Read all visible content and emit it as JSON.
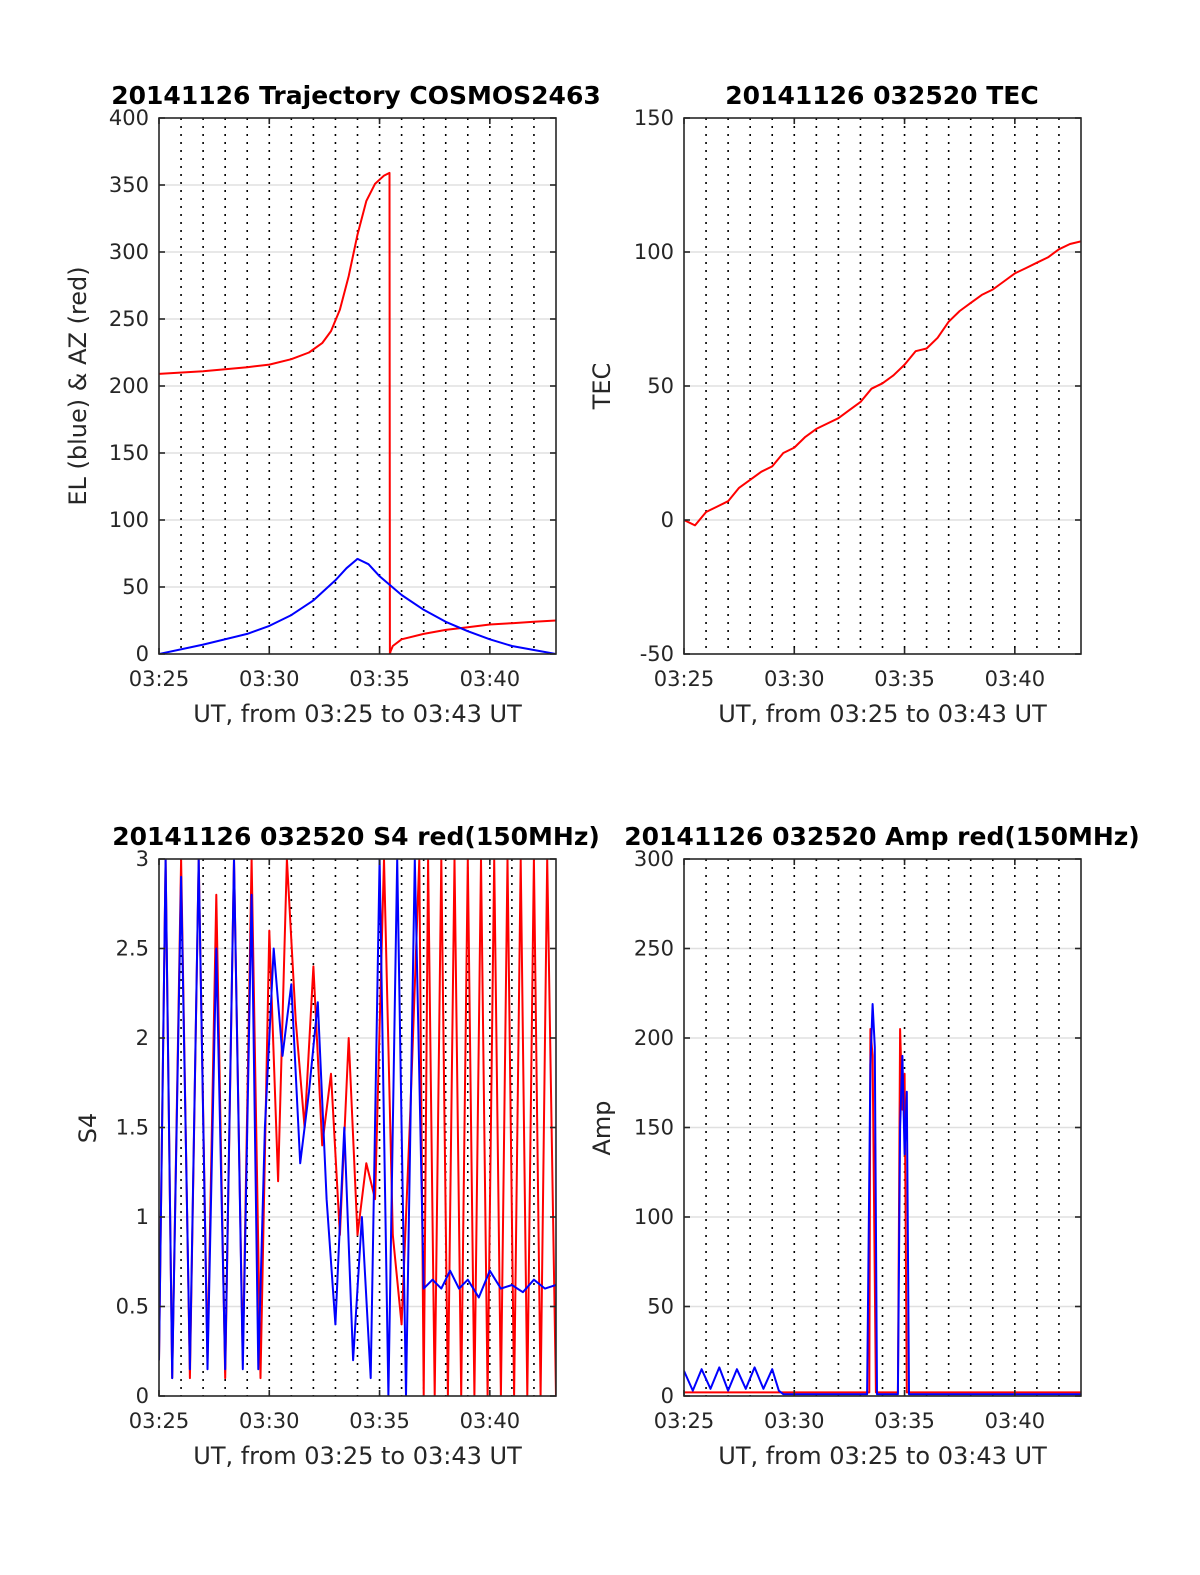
{
  "chart_data": [
    {
      "type": "line",
      "title": "20141126 Trajectory COSMOS2463",
      "xlabel": "UT, from 03:25 to 03:43 UT",
      "ylabel": "EL (blue) & AZ (red)",
      "xlim": [
        0,
        18
      ],
      "ylim": [
        0,
        400
      ],
      "xticks": [
        0,
        5,
        10,
        15
      ],
      "xtick_labels": [
        "03:25",
        "03:30",
        "03:35",
        "03:40"
      ],
      "yticks": [
        0,
        50,
        100,
        150,
        200,
        250,
        300,
        350,
        400
      ],
      "ytick_labels": [
        "0",
        "50",
        "100",
        "150",
        "200",
        "250",
        "300",
        "350",
        "400"
      ],
      "grid": {
        "horizontal": true,
        "vertical_dotted_every_minute": true
      },
      "series": [
        {
          "color": "#ff0000",
          "x": [
            0,
            2,
            4,
            5,
            6,
            6.8,
            7.4,
            7.8,
            8.2,
            8.6,
            9,
            9.4,
            9.8,
            10.2,
            10.45,
            10.47,
            10.5,
            10.6,
            11,
            12,
            13,
            14,
            15,
            16,
            17,
            18
          ],
          "y": [
            209,
            211,
            214,
            216,
            220,
            225,
            232,
            241,
            257,
            282,
            313,
            338,
            351,
            357,
            359,
            0,
            2,
            6,
            11,
            15,
            18,
            20,
            22,
            23,
            24,
            25
          ]
        },
        {
          "color": "#0000ff",
          "x": [
            0,
            2,
            4,
            5,
            6,
            7,
            8,
            8.5,
            9,
            9.5,
            10,
            11,
            12,
            13,
            14,
            15,
            16,
            17,
            18
          ],
          "y": [
            0,
            7,
            15,
            21,
            29,
            40,
            55,
            64,
            71,
            67,
            58,
            44,
            33,
            24,
            17,
            11,
            6,
            3,
            0
          ]
        }
      ]
    },
    {
      "type": "line",
      "title": "20141126 032520 TEC",
      "xlabel": "UT, from 03:25 to 03:43 UT",
      "ylabel": "TEC",
      "xlim": [
        0,
        18
      ],
      "ylim": [
        -50,
        150
      ],
      "xticks": [
        0,
        5,
        10,
        15
      ],
      "xtick_labels": [
        "03:25",
        "03:30",
        "03:35",
        "03:40"
      ],
      "yticks": [
        -50,
        0,
        50,
        100,
        150
      ],
      "ytick_labels": [
        "-50",
        "0",
        "50",
        "100",
        "150"
      ],
      "grid": {
        "horizontal": true,
        "vertical_dotted_every_minute": true
      },
      "series": [
        {
          "color": "#ff0000",
          "x": [
            0,
            0.5,
            1,
            1.5,
            2,
            2.5,
            3,
            3.5,
            4,
            4.5,
            5,
            5.5,
            6,
            6.5,
            7,
            7.5,
            8,
            8.5,
            9,
            9.5,
            10,
            10.5,
            11,
            11.5,
            12,
            12.5,
            13,
            13.5,
            14,
            14.5,
            15,
            15.5,
            16,
            16.5,
            17,
            17.5,
            18
          ],
          "y": [
            0,
            -2,
            3,
            5,
            7,
            12,
            15,
            18,
            20,
            25,
            27,
            31,
            34,
            36,
            38,
            41,
            44,
            49,
            51,
            54,
            58,
            63,
            64,
            68,
            74,
            78,
            81,
            84,
            86,
            89,
            92,
            94,
            96,
            98,
            101,
            103,
            104
          ]
        }
      ]
    },
    {
      "type": "line",
      "title": "20141126 032520 S4 red(150MHz)",
      "xlabel": "UT, from 03:25 to 03:43 UT",
      "ylabel": "S4",
      "xlim": [
        0,
        18
      ],
      "ylim": [
        0,
        3
      ],
      "xticks": [
        0,
        5,
        10,
        15
      ],
      "xtick_labels": [
        "03:25",
        "03:30",
        "03:35",
        "03:40"
      ],
      "yticks": [
        0,
        0.5,
        1,
        1.5,
        2,
        2.5,
        3
      ],
      "ytick_labels": [
        "0",
        "0.5",
        "1",
        "1.5",
        "2",
        "2.5",
        "3"
      ],
      "grid": {
        "horizontal": true,
        "vertical_dotted_every_minute": true
      },
      "series": [
        {
          "color": "#ff0000",
          "x": [
            0,
            0.3,
            0.6,
            1,
            1.4,
            1.8,
            2.2,
            2.6,
            3,
            3.4,
            3.8,
            4.2,
            4.6,
            5,
            5.4,
            5.8,
            6.2,
            6.6,
            7,
            7.4,
            7.8,
            8.2,
            8.6,
            9,
            9.4,
            9.8,
            10.2,
            10.6,
            11,
            11.4,
            11.8,
            12,
            12.2,
            12.5,
            12.8,
            13.1,
            13.4,
            13.7,
            14,
            14.3,
            14.6,
            14.9,
            15.2,
            15.5,
            15.8,
            16.1,
            16.4,
            16.7,
            17,
            17.3,
            17.6,
            18
          ],
          "y": [
            0.2,
            3,
            0.1,
            3,
            0.1,
            3,
            0.2,
            2.8,
            0.1,
            3,
            0.2,
            3,
            0.1,
            2.6,
            1.2,
            3,
            2.1,
            1.5,
            2.4,
            1.4,
            1.8,
            0.9,
            2.0,
            0.9,
            1.3,
            1.1,
            3,
            0.9,
            0.4,
            1.6,
            3,
            0,
            3,
            0,
            3,
            0,
            3,
            0,
            3,
            0,
            3,
            0,
            3,
            0,
            3,
            0,
            3,
            0,
            3,
            0,
            3,
            0
          ]
        },
        {
          "color": "#0000ff",
          "x": [
            0,
            0.3,
            0.6,
            1,
            1.4,
            1.8,
            2.2,
            2.6,
            3,
            3.4,
            3.8,
            4.2,
            4.5,
            4.8,
            5.2,
            5.6,
            6,
            6.4,
            6.8,
            7.2,
            7.6,
            8,
            8.4,
            8.8,
            9.2,
            9.6,
            10,
            10.4,
            10.8,
            11.2,
            11.6,
            12,
            12.4,
            12.8,
            13.2,
            13.6,
            14,
            14.5,
            15,
            15.5,
            16,
            16.5,
            17,
            17.5,
            18
          ],
          "y": [
            0.2,
            3,
            0.1,
            2.9,
            0.15,
            3,
            0.15,
            2.5,
            0.15,
            3,
            0.15,
            2.8,
            0.15,
            1.5,
            2.5,
            1.9,
            2.3,
            1.3,
            1.7,
            2.2,
            1.1,
            0.4,
            1.5,
            0.2,
            1.0,
            0.1,
            3,
            0,
            3,
            0,
            3,
            0.6,
            0.65,
            0.6,
            0.7,
            0.6,
            0.65,
            0.55,
            0.7,
            0.6,
            0.62,
            0.58,
            0.65,
            0.6,
            0.62
          ]
        }
      ]
    },
    {
      "type": "line",
      "title": "20141126 032520 Amp red(150MHz)",
      "xlabel": "UT, from 03:25 to 03:43 UT",
      "ylabel": "Amp",
      "xlim": [
        0,
        18
      ],
      "ylim": [
        0,
        300
      ],
      "xticks": [
        0,
        5,
        10,
        15
      ],
      "xtick_labels": [
        "03:25",
        "03:30",
        "03:35",
        "03:40"
      ],
      "yticks": [
        0,
        50,
        100,
        150,
        200,
        250,
        300
      ],
      "ytick_labels": [
        "0",
        "50",
        "100",
        "150",
        "200",
        "250",
        "300"
      ],
      "grid": {
        "horizontal": true,
        "vertical_dotted_every_minute": true
      },
      "series": [
        {
          "color": "#ff0000",
          "x": [
            0,
            8,
            8.4,
            8.45,
            8.55,
            8.7,
            9.7,
            9.8,
            9.9,
            10.0,
            10.1,
            18
          ],
          "y": [
            2,
            2,
            2,
            205,
            190,
            2,
            2,
            205,
            160,
            180,
            2,
            2
          ]
        },
        {
          "color": "#0000ff",
          "x": [
            0,
            0.4,
            0.8,
            1.2,
            1.6,
            2,
            2.4,
            2.8,
            3.2,
            3.6,
            4,
            4.3,
            4.5,
            8,
            8.3,
            8.45,
            8.55,
            8.65,
            8.75,
            9.7,
            9.8,
            9.9,
            10.0,
            10.1,
            10.2,
            18
          ],
          "y": [
            14,
            3,
            15,
            4,
            16,
            3,
            15,
            4,
            16,
            4,
            15,
            3,
            1,
            1,
            1,
            185,
            219,
            195,
            1,
            1,
            150,
            190,
            135,
            170,
            1,
            1
          ]
        }
      ]
    }
  ]
}
